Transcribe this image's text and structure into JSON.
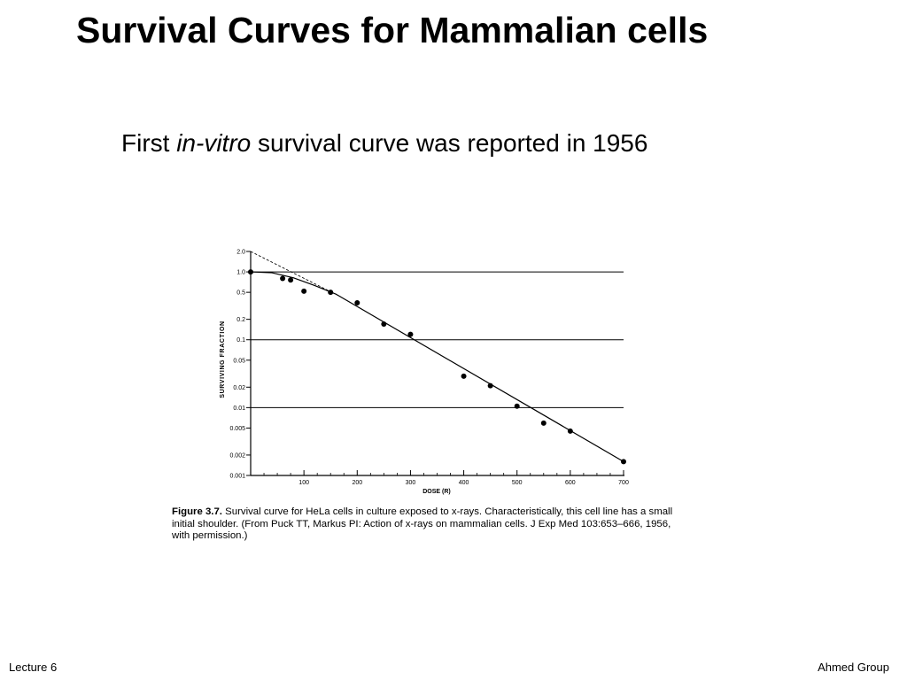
{
  "slide": {
    "title": "Survival Curves for Mammalian cells",
    "subtitle_pre": "First ",
    "subtitle_italic": "in-vitro",
    "subtitle_post": " survival curve was reported in 1956",
    "caption_label": "Figure 3.7.",
    "caption_text": "  Survival curve for HeLa cells in culture exposed to x-rays. Characteristically, this cell line has a small initial shoulder. (From Puck TT, Markus PI: Action of x-rays on mammalian cells. J Exp Med 103:653–666, 1956, with permission.)",
    "footer_left": "Lecture 6",
    "footer_right": "Ahmed Group"
  },
  "chart_data": {
    "type": "scatter",
    "xlabel": "DOSE (R)",
    "ylabel": "SURVIVING FRACTION",
    "xlim": [
      0,
      700
    ],
    "ylim": [
      0.001,
      2.0
    ],
    "yscale": "log",
    "xticks": [
      100,
      200,
      300,
      400,
      500,
      600,
      700
    ],
    "yticks": [
      {
        "value": 2.0,
        "label": "2.0"
      },
      {
        "value": 1.0,
        "label": "1.0"
      },
      {
        "value": 0.5,
        "label": "0.5"
      },
      {
        "value": 0.2,
        "label": "0.2"
      },
      {
        "value": 0.1,
        "label": "0.1"
      },
      {
        "value": 0.05,
        "label": "0.05"
      },
      {
        "value": 0.02,
        "label": "0.02"
      },
      {
        "value": 0.01,
        "label": "0.01"
      },
      {
        "value": 0.005,
        "label": "0.005"
      },
      {
        "value": 0.002,
        "label": "0.002"
      },
      {
        "value": 0.001,
        "label": "0.001"
      }
    ],
    "reference_lines": [
      1.0,
      0.1,
      0.01
    ],
    "points": [
      {
        "x": 0,
        "y": 1.0
      },
      {
        "x": 60,
        "y": 0.8
      },
      {
        "x": 75,
        "y": 0.76
      },
      {
        "x": 100,
        "y": 0.52
      },
      {
        "x": 150,
        "y": 0.5
      },
      {
        "x": 200,
        "y": 0.35
      },
      {
        "x": 250,
        "y": 0.17
      },
      {
        "x": 300,
        "y": 0.12
      },
      {
        "x": 400,
        "y": 0.029
      },
      {
        "x": 450,
        "y": 0.021
      },
      {
        "x": 500,
        "y": 0.0105
      },
      {
        "x": 550,
        "y": 0.0059
      },
      {
        "x": 600,
        "y": 0.0045
      },
      {
        "x": 700,
        "y": 0.0016
      }
    ],
    "fit_curve": [
      {
        "x": 0,
        "y": 1.0
      },
      {
        "x": 40,
        "y": 0.97
      },
      {
        "x": 80,
        "y": 0.82
      },
      {
        "x": 120,
        "y": 0.63
      },
      {
        "x": 160,
        "y": 0.47
      },
      {
        "x": 700,
        "y": 0.0016
      }
    ],
    "extrapolation_line": [
      {
        "x": 0,
        "y": 2.0
      },
      {
        "x": 150,
        "y": 0.51
      }
    ],
    "grid": false
  }
}
